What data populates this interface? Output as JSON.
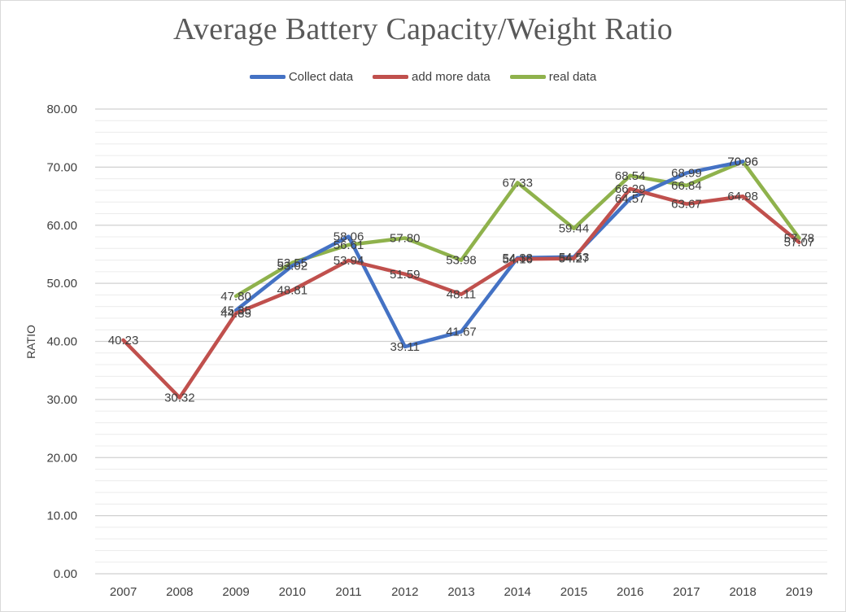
{
  "chart_data": {
    "type": "line",
    "title": "Average Battery Capacity/Weight Ratio",
    "xlabel": "",
    "ylabel": "RATIO",
    "ylim": [
      0,
      80
    ],
    "y_ticks": [
      "0.00",
      "10.00",
      "20.00",
      "30.00",
      "40.00",
      "50.00",
      "60.00",
      "70.00",
      "80.00"
    ],
    "grid": true,
    "legend_position": "top",
    "categories": [
      "2007",
      "2008",
      "2009",
      "2010",
      "2011",
      "2012",
      "2013",
      "2014",
      "2015",
      "2016",
      "2017",
      "2018",
      "2019"
    ],
    "series": [
      {
        "name": "Collect data",
        "color": "#4472c4",
        "values": [
          null,
          null,
          45.35,
          53.02,
          58.06,
          39.11,
          41.67,
          54.38,
          54.53,
          64.57,
          68.99,
          70.96,
          null
        ],
        "labels": [
          "",
          "",
          "45.35",
          "53.02",
          "58.06",
          "39.11",
          "41.67",
          "54.38",
          "54.53",
          "64.57",
          "68.99",
          "70.96",
          ""
        ]
      },
      {
        "name": "add more data",
        "color": "#c0504d",
        "values": [
          40.23,
          30.32,
          44.85,
          48.81,
          53.94,
          51.59,
          48.11,
          54.16,
          54.27,
          66.29,
          63.67,
          64.98,
          57.07
        ],
        "labels": [
          "40.23",
          "30.32",
          "44.85",
          "48.81",
          "53.94",
          "51.59",
          "48.11",
          "54.16",
          "54.27",
          "66.29",
          "63.67",
          "64.98",
          "57.07"
        ]
      },
      {
        "name": "real data",
        "color": "#8fb24c",
        "values": [
          null,
          null,
          47.8,
          53.55,
          56.61,
          57.8,
          53.98,
          67.33,
          59.44,
          68.54,
          66.84,
          70.96,
          57.78
        ],
        "labels": [
          "",
          "",
          "47.80",
          "53.55",
          "56.61",
          "57.80",
          "53.98",
          "67.33",
          "59.44",
          "68.54",
          "66.84",
          "70.96",
          "57.78"
        ]
      }
    ]
  }
}
